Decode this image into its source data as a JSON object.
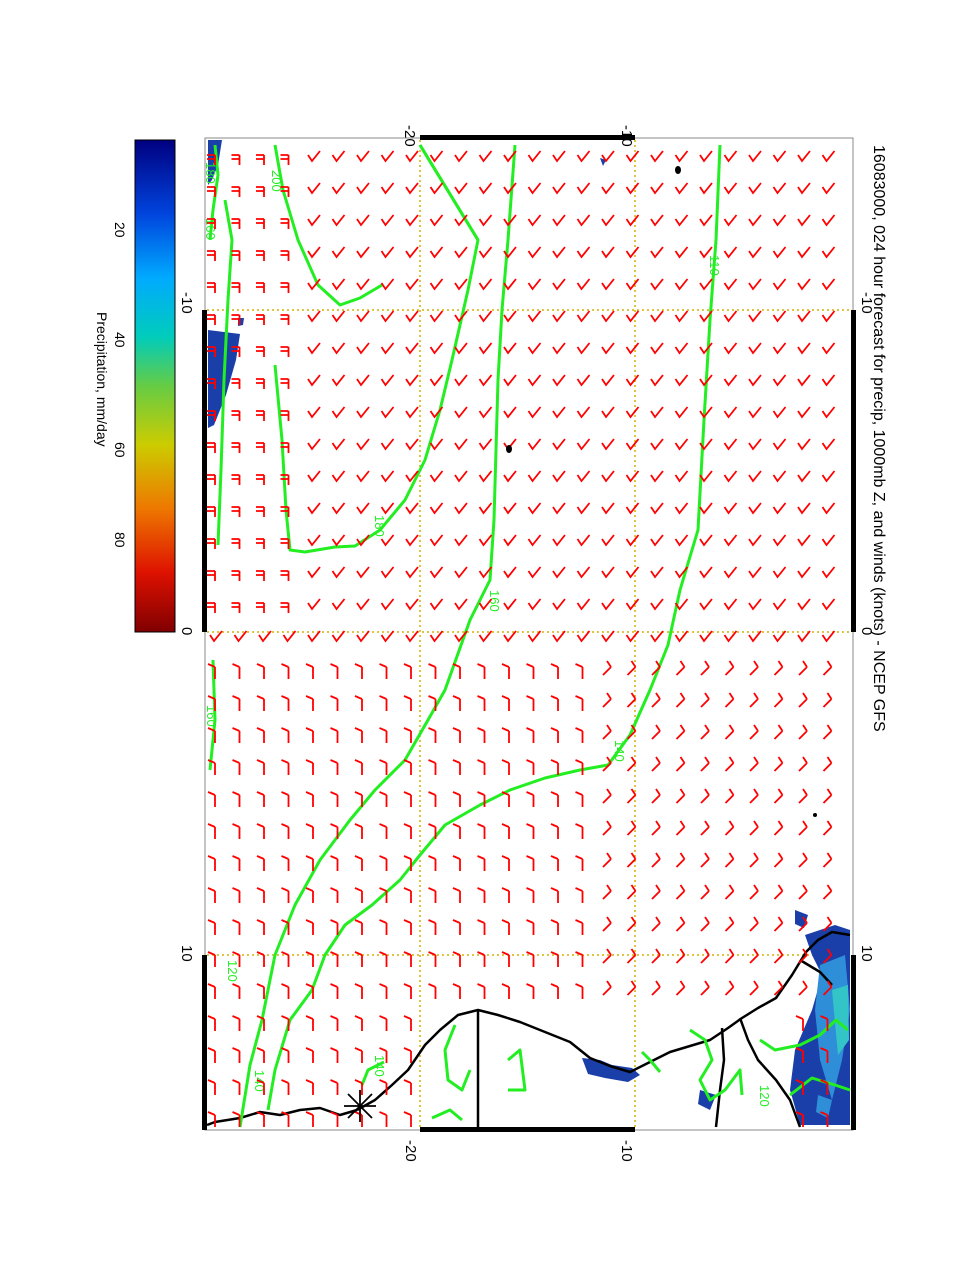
{
  "title": "16083000, 024 hour forecast for precip, 1000mb Z, and winds (knots) - NCEP GFS",
  "axes": {
    "top_ticks": [
      "-20",
      "-10"
    ],
    "bottom_ticks": [
      "-20",
      "-10"
    ],
    "left_ticks": [
      "-10",
      "0",
      "10"
    ],
    "right_ticks": [
      "-10",
      "0",
      "10"
    ]
  },
  "colorbar": {
    "label": "Precipitation, mm/day",
    "ticks": [
      "20",
      "40",
      "60",
      "80"
    ],
    "colors": [
      "#000080",
      "#0000dd",
      "#0077ff",
      "#00ccff",
      "#00ddaa",
      "#66cc44",
      "#cccc00",
      "#dd8800",
      "#dd2200",
      "#800000"
    ]
  },
  "contour_labels": [
    "180",
    "200",
    "160",
    "180",
    "160",
    "110",
    "160",
    "140",
    "120",
    "140",
    "140",
    "120"
  ],
  "colors": {
    "contour": "#22ee22",
    "wind": "#ff0000",
    "grid": "#d4b000",
    "coast": "#000000",
    "precip": "#1a3fa8"
  }
}
